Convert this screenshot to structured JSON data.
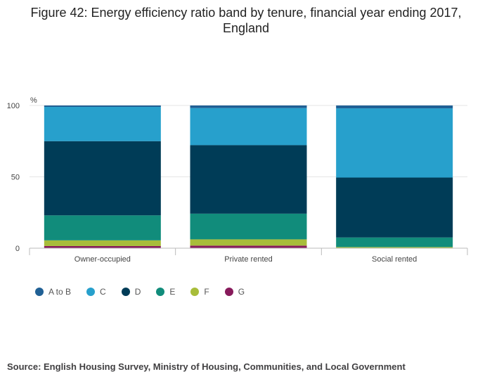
{
  "chart_data": {
    "type": "bar",
    "stacked": true,
    "title": "Figure 42: Energy efficiency ratio band by tenure, financial year ending 2017, England",
    "ylabel": "%",
    "xlabel": "",
    "ylim": [
      0,
      100
    ],
    "yticks": [
      "0",
      "50",
      "100"
    ],
    "categories": [
      "Owner-occupied",
      "Private rented",
      "Social rented"
    ],
    "series": [
      {
        "name": "G",
        "color": "#871a5b",
        "values": [
          1.5,
          1.8,
          0.2
        ]
      },
      {
        "name": "F",
        "color": "#a8bd3a",
        "values": [
          4.0,
          4.4,
          0.6
        ]
      },
      {
        "name": "E",
        "color": "#118c7b",
        "values": [
          17.5,
          18.0,
          6.7
        ]
      },
      {
        "name": "D",
        "color": "#003c57",
        "values": [
          52.0,
          48.0,
          42.0
        ]
      },
      {
        "name": "C",
        "color": "#27a0cc",
        "values": [
          24.0,
          26.0,
          48.5
        ]
      },
      {
        "name": "A to B",
        "color": "#206095",
        "values": [
          1.0,
          1.8,
          2.0
        ]
      }
    ],
    "legend": {
      "position": "bottom-left",
      "order": [
        "A to B",
        "C",
        "D",
        "E",
        "F",
        "G"
      ]
    },
    "grid": true
  },
  "source": "Source: English Housing Survey, Ministry of Housing, Communities, and Local Government"
}
